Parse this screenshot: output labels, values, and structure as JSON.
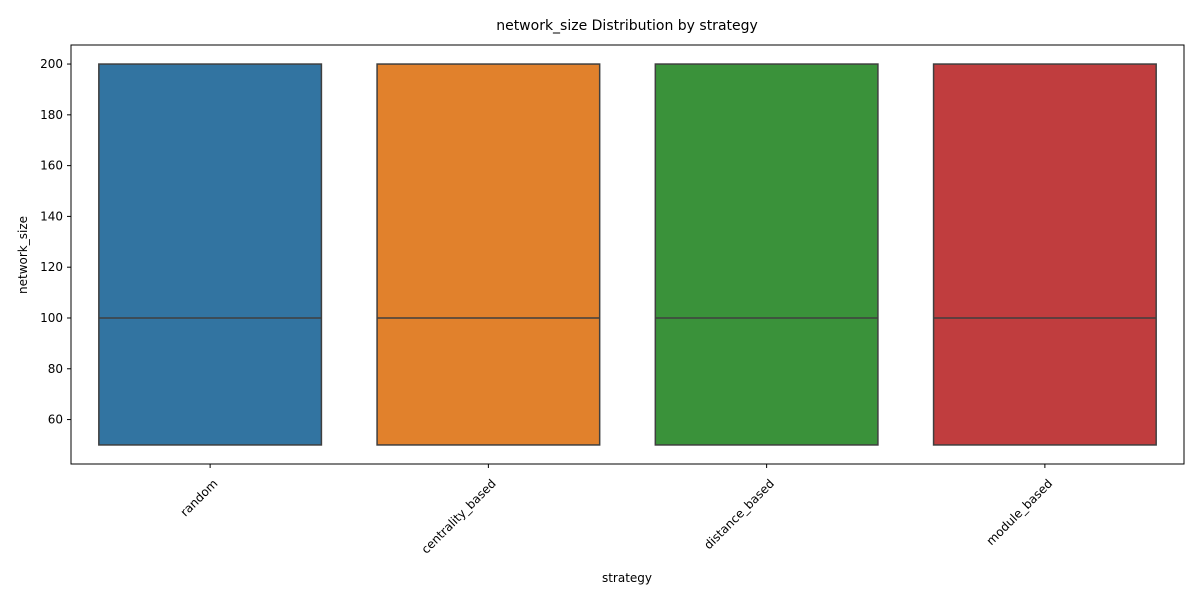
{
  "chart_data": {
    "type": "box",
    "title": "network_size Distribution by strategy",
    "xlabel": "strategy",
    "ylabel": "network_size",
    "categories": [
      "random",
      "centrality_based",
      "distance_based",
      "module_based"
    ],
    "boxes": [
      {
        "category": "random",
        "min": 50,
        "q1": 50,
        "median": 100,
        "q3": 200,
        "max": 200,
        "color": "#3274a1"
      },
      {
        "category": "centrality_based",
        "min": 50,
        "q1": 50,
        "median": 100,
        "q3": 200,
        "max": 200,
        "color": "#e1812c"
      },
      {
        "category": "distance_based",
        "min": 50,
        "q1": 50,
        "median": 100,
        "q3": 200,
        "max": 200,
        "color": "#3a923a"
      },
      {
        "category": "module_based",
        "min": 50,
        "q1": 50,
        "median": 100,
        "q3": 200,
        "max": 200,
        "color": "#c03d3e"
      }
    ],
    "yticks": [
      60,
      80,
      100,
      120,
      140,
      160,
      180,
      200
    ],
    "ylim": [
      42.5,
      207.5
    ],
    "grid": false,
    "legend": "none"
  }
}
